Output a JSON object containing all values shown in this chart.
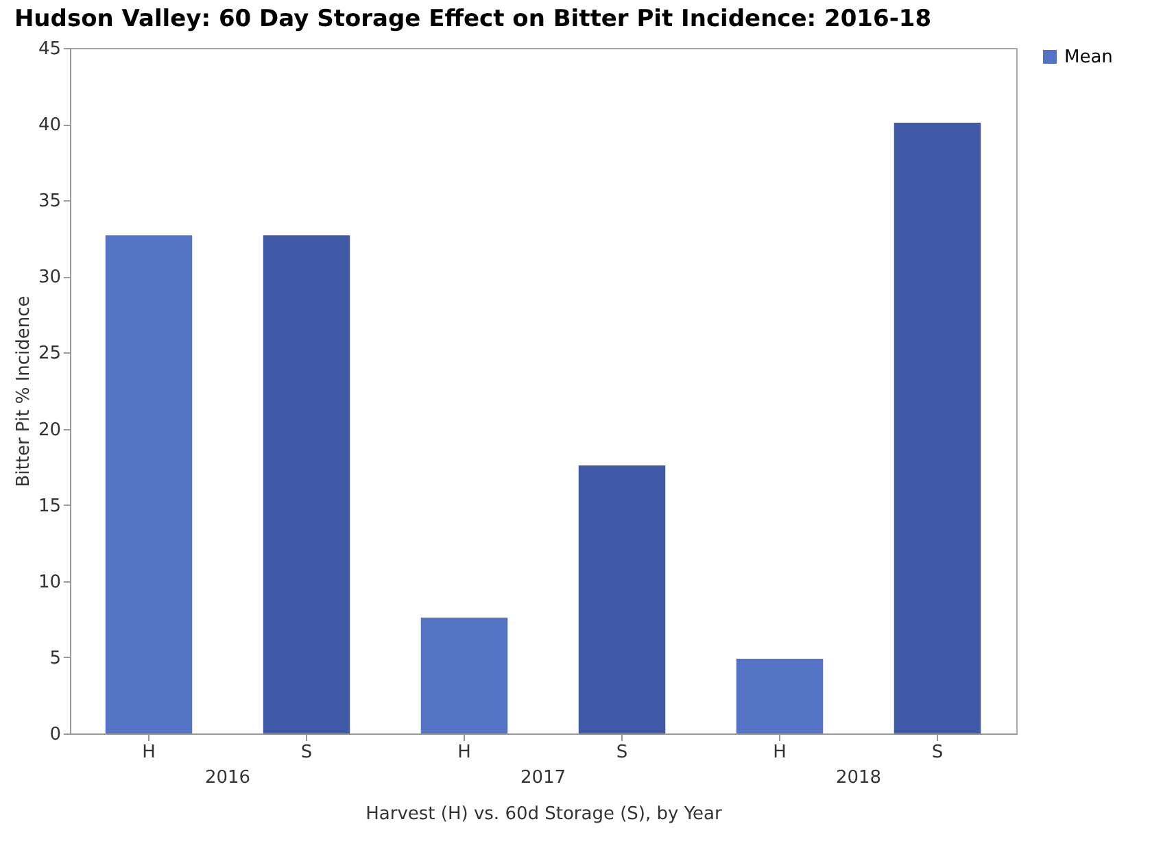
{
  "chart_data": {
    "type": "bar",
    "title": "Hudson Valley:  60 Day Storage Effect on Bitter Pit Incidence: 2016-18",
    "xlabel": "Harvest (H) vs. 60d Storage (S), by Year",
    "ylabel": "Bitter Pit % Incidence",
    "categories": [
      "H",
      "S",
      "H",
      "S",
      "H",
      "S"
    ],
    "series": [
      {
        "name": "Mean",
        "color": "#5473c4",
        "colors": [
          "#5473c4",
          "#3f59a6",
          "#5473c4",
          "#3f59a6",
          "#5473c4",
          "#3f59a6"
        ],
        "values": [
          32.7,
          32.7,
          7.6,
          17.6,
          4.9,
          40.1
        ]
      }
    ],
    "annotations": [
      "2016",
      "2017",
      "2018"
    ],
    "ylim": [
      0,
      45
    ],
    "yticks": [
      0,
      5,
      10,
      15,
      20,
      25,
      30,
      35,
      40,
      45
    ],
    "grid": false,
    "legend": "top right"
  }
}
